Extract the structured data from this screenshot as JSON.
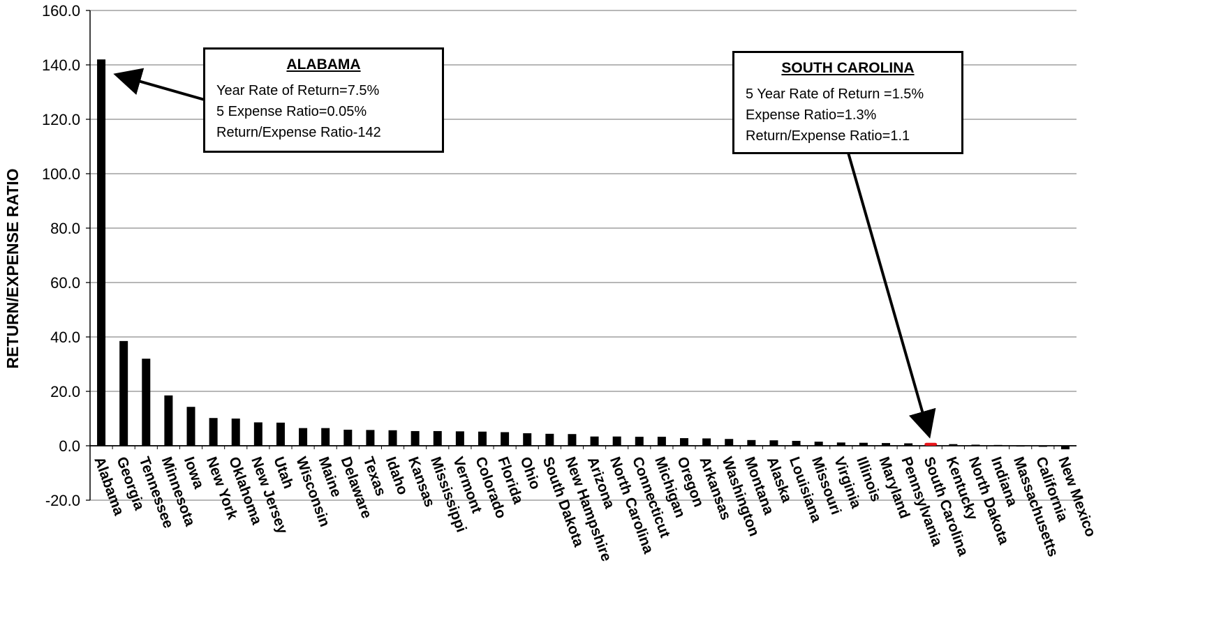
{
  "chart_data": {
    "type": "bar",
    "title": "",
    "xlabel": "",
    "ylabel": "RETURN/EXPENSE RATIO",
    "ylim": [
      -20,
      160
    ],
    "yticks": [
      "160.0",
      "140.0",
      "120.0",
      "100.0",
      "80.0",
      "60.0",
      "40.0",
      "20.0",
      "0.0",
      "-20.0"
    ],
    "grid": true,
    "bar_color": "#000000",
    "highlight_color": "#e8161b",
    "highlight_category": "South Carolina",
    "categories": [
      "Alabama",
      "Georgia",
      "Tennessee",
      "Minnesota",
      "Iowa",
      "New York",
      "Oklahoma",
      "New Jersey",
      "Utah",
      "Wisconsin",
      "Maine",
      "Delaware",
      "Texas",
      "Idaho",
      "Kansas",
      "Mississippi",
      "Vermont",
      "Colorado",
      "Florida",
      "Ohio",
      "South Dakota",
      "New Hampshire",
      "Arizona",
      "North Carolina",
      "Connecticut",
      "Michigan",
      "Oregon",
      "Arkansas",
      "Washington",
      "Montana",
      "Alaska",
      "Louisiana",
      "Missouri",
      "Virginia",
      "Illinois",
      "Maryland",
      "Pennsylvania",
      "South Carolina",
      "Kentucky",
      "North Dakota",
      "Indiana",
      "Massachusetts",
      "California",
      "New Mexico"
    ],
    "values": [
      142.0,
      38.5,
      32.0,
      18.5,
      14.3,
      10.2,
      10.0,
      8.6,
      8.5,
      6.5,
      6.5,
      5.9,
      5.8,
      5.7,
      5.4,
      5.4,
      5.3,
      5.2,
      5.0,
      4.6,
      4.4,
      4.3,
      3.4,
      3.4,
      3.3,
      3.3,
      2.8,
      2.7,
      2.5,
      2.1,
      2.0,
      1.8,
      1.5,
      1.2,
      1.1,
      1.0,
      0.9,
      1.1,
      0.6,
      0.4,
      0.3,
      0.1,
      -0.3,
      -1.3
    ]
  },
  "callouts": [
    {
      "title": "ALABAMA",
      "lines": [
        "Year Rate of Return=7.5%",
        "5 Expense Ratio=0.05%",
        "Return/Expense Ratio-142"
      ]
    },
    {
      "title": "SOUTH CAROLINA",
      "lines": [
        "5 Year Rate of Return =1.5%",
        "Expense Ratio=1.3%",
        "Return/Expense Ratio=1.1"
      ]
    }
  ]
}
